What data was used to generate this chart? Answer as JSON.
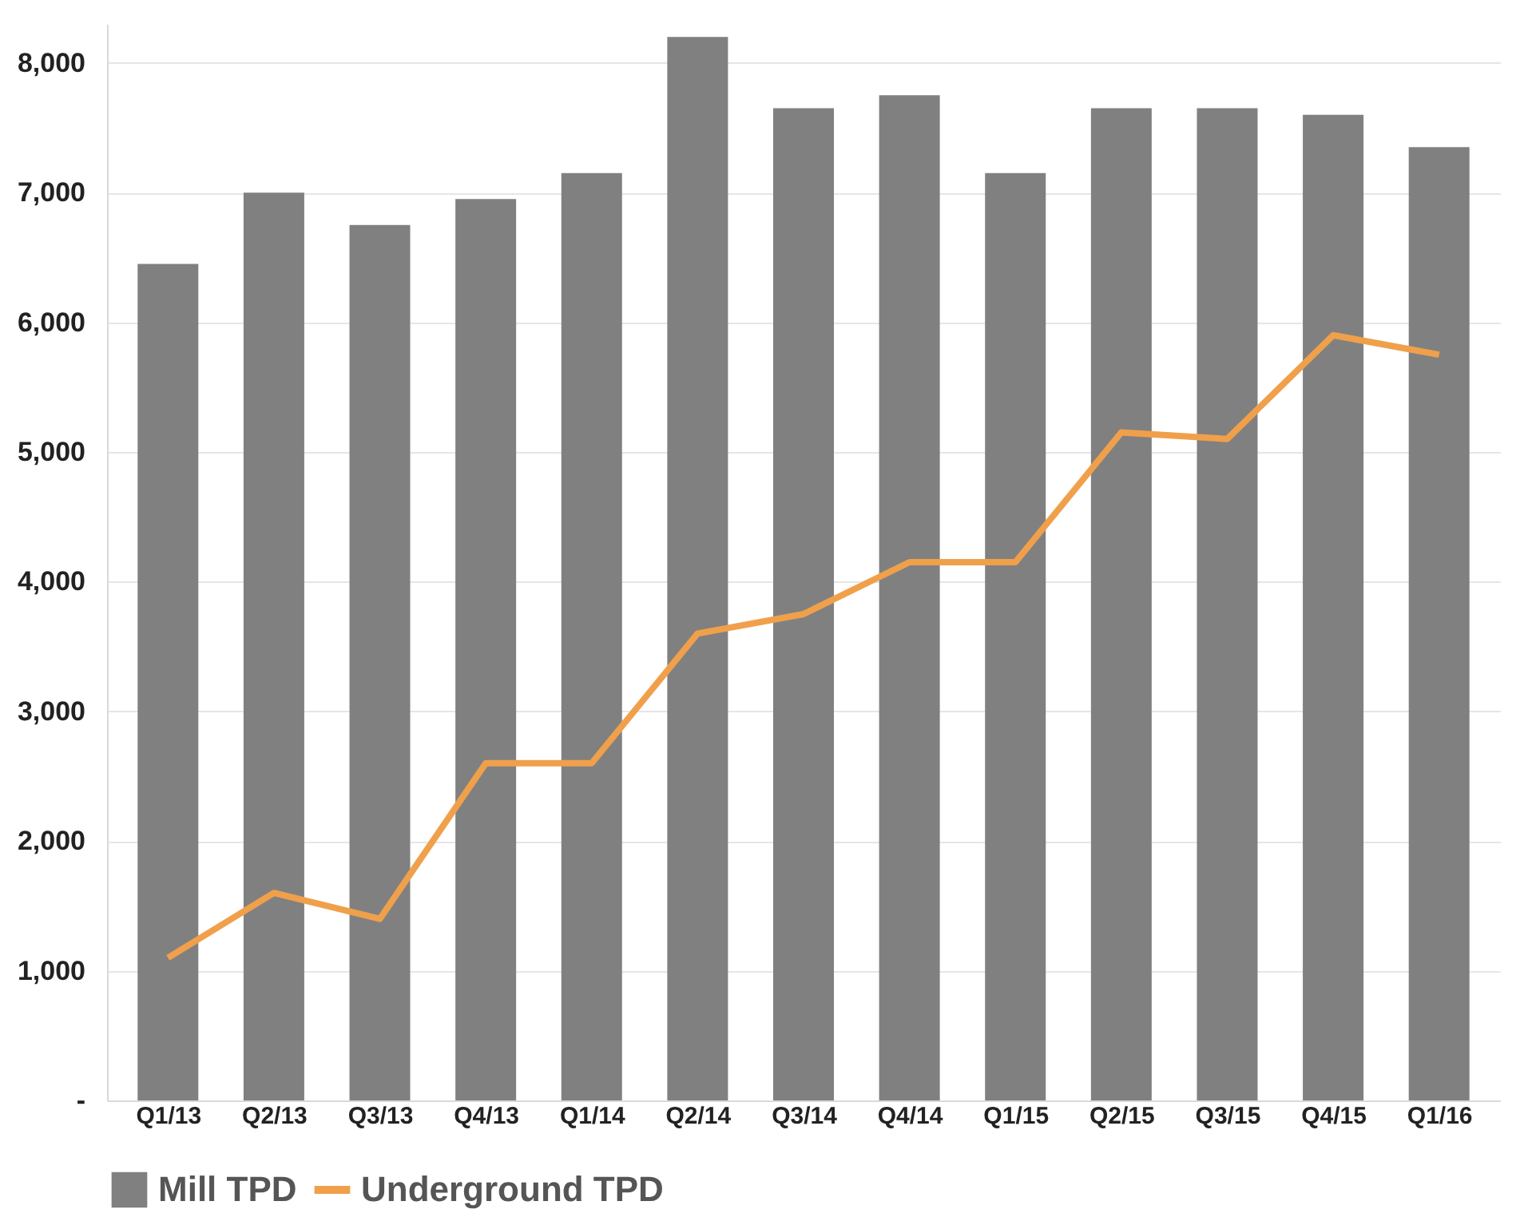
{
  "chart_data": {
    "type": "bar",
    "categories": [
      "Q1/13",
      "Q2/13",
      "Q3/13",
      "Q4/13",
      "Q1/14",
      "Q2/14",
      "Q3/14",
      "Q4/14",
      "Q1/15",
      "Q2/15",
      "Q3/15",
      "Q4/15",
      "Q1/16"
    ],
    "series": [
      {
        "name": "Mill TPD",
        "color": "#808080",
        "values": [
          6450,
          7000,
          6750,
          6950,
          7150,
          8200,
          7650,
          7750,
          7150,
          7650,
          7650,
          7600,
          7350
        ]
      },
      {
        "name": "Underground TPD",
        "type": "line",
        "color": "#f0a04b",
        "values": [
          1100,
          1600,
          1400,
          2600,
          2600,
          3600,
          3750,
          4150,
          4150,
          5150,
          5100,
          5900,
          5750
        ]
      }
    ],
    "ylim": [
      0,
      8300
    ],
    "yticks": [
      {
        "value": 0,
        "label": "-"
      },
      {
        "value": 1000,
        "label": "1,000"
      },
      {
        "value": 2000,
        "label": "2,000"
      },
      {
        "value": 3000,
        "label": "3,000"
      },
      {
        "value": 4000,
        "label": "4,000"
      },
      {
        "value": 5000,
        "label": "5,000"
      },
      {
        "value": 6000,
        "label": "6,000"
      },
      {
        "value": 7000,
        "label": "7,000"
      },
      {
        "value": 8000,
        "label": "8,000"
      }
    ],
    "grid": "y",
    "legend": "bottom",
    "marker": "none",
    "line_style": "solid"
  }
}
